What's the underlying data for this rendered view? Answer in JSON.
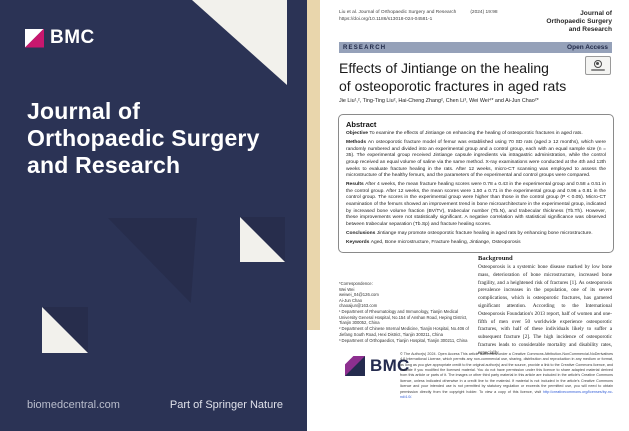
{
  "cover": {
    "logo_text": "BMC",
    "title_lines": [
      "Journal of",
      "Orthopaedic Surgery",
      "and Research"
    ],
    "footer_left": "biomedcentral.com",
    "footer_right": "Part of Springer Nature",
    "colors": {
      "navy": "#2b3355",
      "magenta": "#c8176e",
      "offwhite": "#f2f1ec",
      "spine_beige": "#e9d6ac"
    }
  },
  "paper": {
    "citation": "Liu et al. Journal of Orthopaedic Surgery and Research",
    "citation_volume": "(2024) 19:98",
    "doi": "https://doi.org/10.1186/s13018-024-04581-1",
    "journal_header": "Journal of Orthopaedic Surgery and Research",
    "banner": {
      "left": "RESEARCH",
      "right": "Open Access"
    },
    "title_line1": "Effects of Jintiange on the healing",
    "title_line2": "of osteoporotic fractures in aged rats",
    "authors": "Jie Liu¹,², Ting-Ting Liu², Hai-Cheng Zhang², Chen Li³, Wei Wei⁴* and Ai-Jun Chao²*",
    "abstract": {
      "heading": "Abstract",
      "objective_label": "Objective",
      "objective": "To examine the effects of Jintiange on enhancing the healing of osteoporotic fractures in aged rats.",
      "methods_label": "Methods",
      "methods": "An osteoporotic fracture model of femur was established using 70 SD rats (aged ≥ 12 months), which were randomly numbered and divided into an experimental group and a control group, each with an equal sample size (n = 35). The experimental group received Jintiange capsule ingredients via intragastric administration, while the control group received an equal volume of saline via the same method. X-ray examinations were conducted at the 4th and 12th weeks to evaluate fracture healing in the rats. After 12 weeks, micro-CT scanning was employed to assess the microstructure of the healthy femurs, and the parameters of the experimental and control groups were compared.",
      "results_label": "Results",
      "results": "After 4 weeks, the mean fracture healing scores were 0.78 ± 0.43 in the experimental group and 0.58 ± 0.51 in the control group. After 12 weeks, the mean scores were 1.50 ± 0.71 in the experimental group and 0.96 ± 0.81 in the control group. The scores in the experimental group were higher than those in the control group (P < 0.05). Micro-CT examination of the femurs showed an improvement trend in bone microarchitecture in the experimental group, indicated by increased bone volume fraction (BV/TV), trabecular number (Tb.N), and trabecular thickness (Tb.Th). However, these improvements were not statistically significant. A negative correlation with statistical significance was observed between trabecular separation (Tb.Sp) and fracture healing scores.",
      "conclusions_label": "Conclusions",
      "conclusions": "Jintiange may promote osteoporotic fracture healing in aged rats by enhancing bone microstructure.",
      "keywords_label": "Keywords",
      "keywords": "Aged, Bone microstructure, Fracture healing, Jintiange, Osteoporosis"
    },
    "correspondence": {
      "label": "*Correspondence:",
      "contact1_name": "Wei Wei",
      "contact1_email": "weiwei_04@126.com",
      "contact2_name": "Ai-Jun Chao",
      "contact2_email": "chaoaijun@163.com",
      "affiliations": [
        "¹ Department of Rheumatology and Immunology, Tianjin Medical University General Hospital, No.154 of Anshan Road, Heping District, Tianjin 300052, China",
        "² Department of Chinese Internal Medicine, Tianjin Hospital, No.406 of Jiefang South Road, Hexi District, Tianjin 300211, China",
        "³ Department of Orthopaedics, Tianjin Hospital, Tianjin 300211, China"
      ]
    },
    "background": {
      "heading": "Background",
      "text": "Osteoporosis is a systemic bone disease marked by low bone mass, deterioration of bone microstructure, increased bone fragility, and a heightened risk of fractures [1]. As osteoporosis prevalence increases in the population, one of its severe complications, which is osteoporotic fractures, has garnered significant attention. According to the International Osteoporosis Foundation's 2013 report, half of women and one-fifth of men over 50 worldwide experience osteoporotic fractures, with half of these individuals likely to suffer a subsequent fracture [2]. The high incidence of osteoporotic fractures leads to considerable mortality and disability rates, especially"
    },
    "footer": {
      "logo_text": "BMC",
      "copyright": "© The Author(s) 2024. Open Access This article is licensed under a Creative Commons Attribution-NonCommercial-NoDerivatives 4.0 International License, which permits any non-commercial use, sharing, distribution and reproduction in any medium or format, as long as you give appropriate credit to the original author(s) and the source, provide a link to the Creative Commons licence, and indicate if you modified the licensed material. You do not have permission under this licence to share adapted material derived from this article or parts of it. The images or other third party material in this article are included in the article's Creative Commons licence, unless indicated otherwise in a credit line to the material. If material is not included in the article's Creative Commons licence and your intended use is not permitted by statutory regulation or exceeds the permitted use, you will need to obtain permission directly from the copyright holder. To view a copy of this licence, visit ",
      "copyright_link": "http://creativecommons.org/licenses/by-nc-nd/4.0/."
    }
  }
}
